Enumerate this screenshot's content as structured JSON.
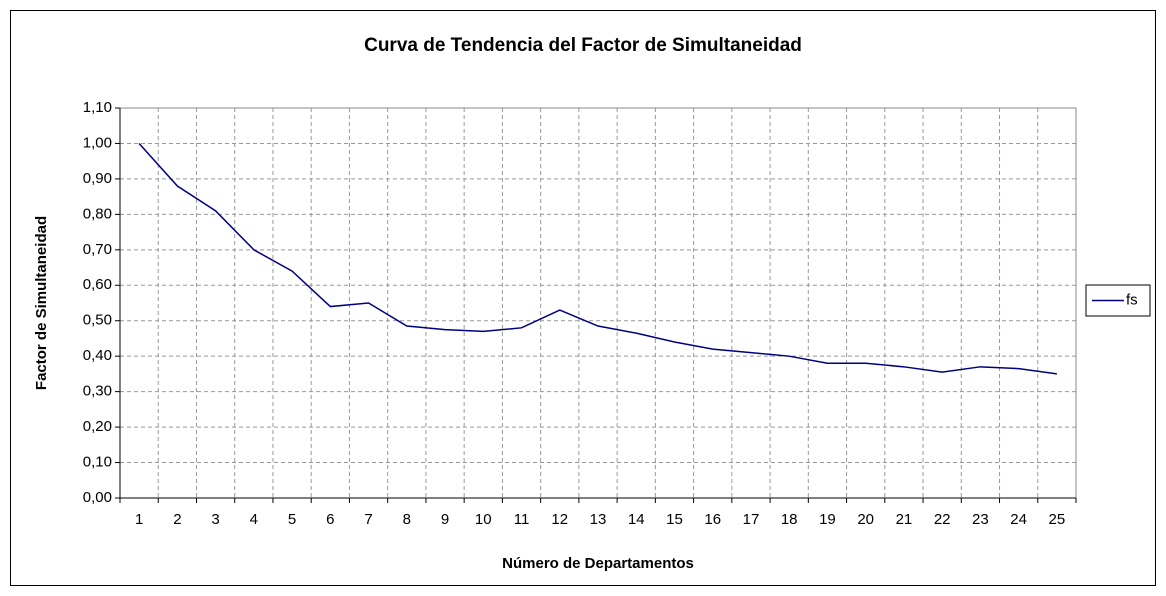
{
  "chart_data": {
    "type": "line",
    "title": "Curva de Tendencia del Factor de Simultaneidad",
    "x_label": "Número de Departamentos",
    "y_label": "Factor de Simultaneidad",
    "categories": [
      "1",
      "2",
      "3",
      "4",
      "5",
      "6",
      "7",
      "8",
      "9",
      "10",
      "11",
      "12",
      "13",
      "14",
      "15",
      "16",
      "17",
      "18",
      "19",
      "20",
      "21",
      "22",
      "23",
      "24",
      "25"
    ],
    "series": [
      {
        "name": "fs",
        "color": "#000080",
        "values": [
          1.0,
          0.88,
          0.81,
          0.7,
          0.64,
          0.54,
          0.55,
          0.485,
          0.475,
          0.47,
          0.48,
          0.53,
          0.485,
          0.465,
          0.44,
          0.42,
          0.41,
          0.4,
          0.38,
          0.38,
          0.37,
          0.355,
          0.37,
          0.365,
          0.35
        ]
      }
    ],
    "ylim": [
      0,
      1.1
    ],
    "yticks": [
      {
        "value": 0,
        "label": "0,00"
      },
      {
        "value": 0.1,
        "label": "0,10"
      },
      {
        "value": 0.2,
        "label": "0,20"
      },
      {
        "value": 0.3,
        "label": "0,30"
      },
      {
        "value": 0.4,
        "label": "0,40"
      },
      {
        "value": 0.5,
        "label": "0,50"
      },
      {
        "value": 0.6,
        "label": "0,60"
      },
      {
        "value": 0.7,
        "label": "0,70"
      },
      {
        "value": 0.8,
        "label": "0,80"
      },
      {
        "value": 0.9,
        "label": "0,90"
      },
      {
        "value": 1.0,
        "label": "1,00"
      },
      {
        "value": 1.1,
        "label": "1,10"
      }
    ],
    "grid": true,
    "legend": "right"
  }
}
